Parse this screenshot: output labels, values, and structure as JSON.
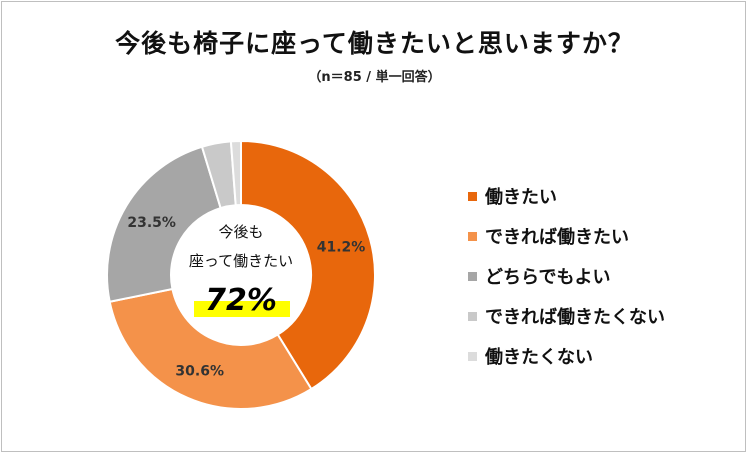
{
  "chart_data": {
    "type": "pie",
    "title": "今後も椅子に座って働きたいと思いますか？",
    "subtitle": "（n＝85 / 単一回答）",
    "categories": [
      "働きたい",
      "できれば働きたい",
      "どちらでもよい",
      "できれば働きたくない",
      "働きたくない"
    ],
    "values": [
      41.2,
      30.6,
      23.5,
      3.5,
      1.2
    ],
    "data_labels": [
      "41.2%",
      "30.6%",
      "23.5%",
      "",
      ""
    ],
    "colors": [
      "#e8670c",
      "#f4924a",
      "#a6a6a6",
      "#c9c9c9",
      "#dcdcdc"
    ],
    "legend_position": "right",
    "center_annotation": {
      "line1": "今後も",
      "line2": "座って働きたい",
      "value": "72%",
      "highlight_color": "#ffff00"
    }
  }
}
